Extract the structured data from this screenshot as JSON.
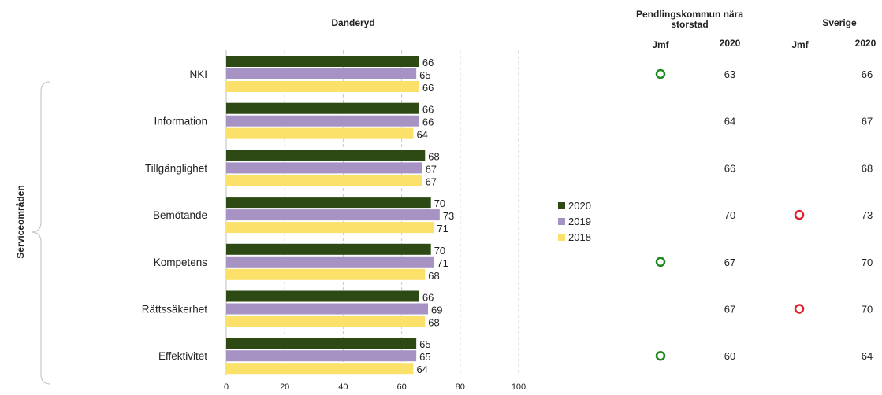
{
  "headers": {
    "danderyd": "Danderyd",
    "pendling_title": "Pendlingskommun nära storstad",
    "sverige_title": "Sverige",
    "jmf": "Jmf",
    "year": "2020"
  },
  "side_label": "Serviceområden",
  "colors": {
    "2020": "#2d4a14",
    "2019": "#a792c4",
    "2018": "#fbe16a",
    "circle_green": "#1e8a1e",
    "circle_red": "#e0202a"
  },
  "legend": [
    {
      "label": "2020",
      "color": "#2d4a14"
    },
    {
      "label": "2019",
      "color": "#a792c4"
    },
    {
      "label": "2018",
      "color": "#fbe16a"
    }
  ],
  "chart_data": {
    "type": "bar",
    "orientation": "horizontal",
    "title": "Danderyd",
    "xlim": [
      0,
      100
    ],
    "xticks": [
      0,
      20,
      40,
      60,
      80,
      100
    ],
    "grid": true,
    "legend_position": "right",
    "categories": [
      "NKI",
      "Information",
      "Tillgänglighet",
      "Bemötande",
      "Kompetens",
      "Rättssäkerhet",
      "Effektivitet"
    ],
    "series": [
      {
        "name": "2020",
        "values": [
          66,
          66,
          68,
          70,
          70,
          66,
          65
        ]
      },
      {
        "name": "2019",
        "values": [
          65,
          66,
          67,
          73,
          71,
          69,
          65
        ]
      },
      {
        "name": "2018",
        "values": [
          66,
          64,
          67,
          71,
          68,
          68,
          64
        ]
      }
    ]
  },
  "comparison": {
    "pendling_jmf": [
      "green",
      "",
      "",
      "",
      "green",
      "",
      "green"
    ],
    "pendling_2020": [
      63,
      64,
      66,
      70,
      67,
      67,
      60
    ],
    "sverige_jmf": [
      "",
      "",
      "",
      "red",
      "",
      "red",
      ""
    ],
    "sverige_2020": [
      66,
      67,
      68,
      73,
      70,
      70,
      64
    ]
  }
}
